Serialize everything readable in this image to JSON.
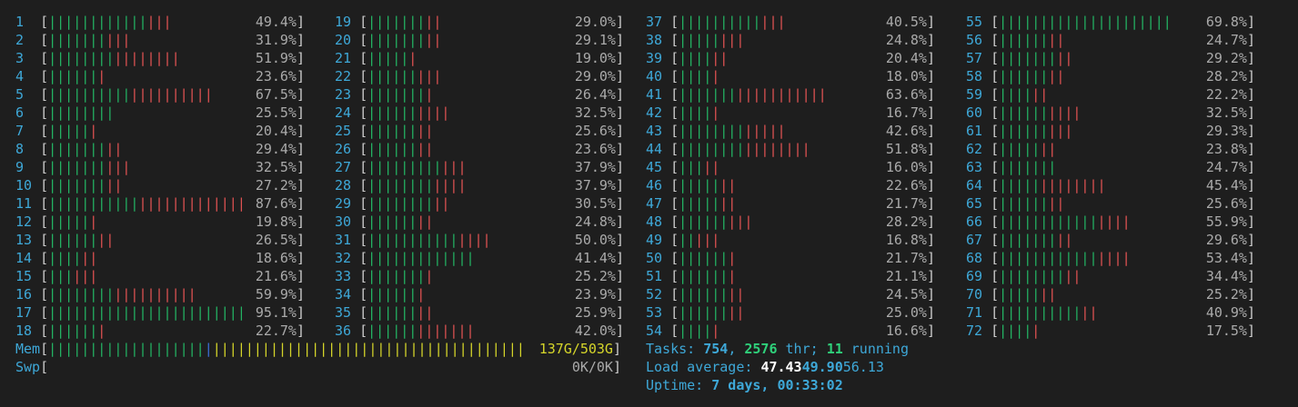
{
  "bracket_open": "[",
  "bracket_close": "]",
  "cpus": [
    {
      "id": "1",
      "green": "||||||||||||",
      "red": "|||",
      "percent": "49.4%"
    },
    {
      "id": "2",
      "green": "|||||||",
      "red": "|||",
      "percent": "31.9%"
    },
    {
      "id": "3",
      "green": "||||||||",
      "red": "||||||||",
      "percent": "51.9%"
    },
    {
      "id": "4",
      "green": "||||||",
      "red": "|",
      "percent": "23.6%"
    },
    {
      "id": "5",
      "green": "||||||||||",
      "red": "||||||||||",
      "percent": "67.5%"
    },
    {
      "id": "6",
      "green": "||||||||",
      "percent": "25.5%"
    },
    {
      "id": "7",
      "green": "|||||",
      "red": "|",
      "percent": "20.4%"
    },
    {
      "id": "8",
      "green": "|||||||",
      "red": "||",
      "percent": "29.4%"
    },
    {
      "id": "9",
      "green": "|||||||",
      "red": "|||",
      "percent": "32.5%"
    },
    {
      "id": "10",
      "green": "|||||||",
      "red": "||",
      "percent": "27.2%"
    },
    {
      "id": "11",
      "green": "|||||||||||",
      "red": "|||||||||||||",
      "percent": "87.6%"
    },
    {
      "id": "12",
      "green": "|||||",
      "red": "|",
      "percent": "19.8%"
    },
    {
      "id": "13",
      "green": "||||||",
      "red": "||",
      "percent": "26.5%"
    },
    {
      "id": "14",
      "green": "||||",
      "red": "||",
      "percent": "18.6%"
    },
    {
      "id": "15",
      "green": "|||",
      "red": "|||",
      "percent": "21.6%"
    },
    {
      "id": "16",
      "green": "||||||||",
      "red": "||||||||||",
      "percent": "59.9%"
    },
    {
      "id": "17",
      "green": "||||||||||||||||||||||||",
      "percent": "95.1%"
    },
    {
      "id": "18",
      "green": "||||||",
      "red": "|",
      "percent": "22.7%"
    },
    {
      "id": "19",
      "green": "|||||||",
      "red": "||",
      "percent": "29.0%"
    },
    {
      "id": "20",
      "green": "|||||||",
      "red": "||",
      "percent": "29.1%"
    },
    {
      "id": "21",
      "green": "|||||",
      "red": "|",
      "percent": "19.0%"
    },
    {
      "id": "22",
      "green": "||||||",
      "red": "|||",
      "percent": "29.0%"
    },
    {
      "id": "23",
      "green": "|||||||",
      "red": "|",
      "percent": "26.4%"
    },
    {
      "id": "24",
      "green": "||||||",
      "red": "||||",
      "percent": "32.5%"
    },
    {
      "id": "25",
      "green": "||||||",
      "red": "||",
      "percent": "25.6%"
    },
    {
      "id": "26",
      "green": "||||||",
      "red": "||",
      "percent": "23.6%"
    },
    {
      "id": "27",
      "green": "|||||||||",
      "red": "|||",
      "percent": "37.9%"
    },
    {
      "id": "28",
      "green": "||||||||",
      "red": "||||",
      "percent": "37.9%"
    },
    {
      "id": "29",
      "green": "||||||||",
      "red": "||",
      "percent": "30.5%"
    },
    {
      "id": "30",
      "green": "||||||",
      "red": "||",
      "percent": "24.8%"
    },
    {
      "id": "31",
      "green": "|||||||||||",
      "red": "||||",
      "percent": "50.0%"
    },
    {
      "id": "32",
      "green": "|||||||||||||",
      "percent": "41.4%"
    },
    {
      "id": "33",
      "green": "|||||||",
      "red": "|",
      "percent": "25.2%"
    },
    {
      "id": "34",
      "green": "||||||",
      "red": "|",
      "percent": "23.9%"
    },
    {
      "id": "35",
      "green": "||||||",
      "red": "||",
      "percent": "25.9%"
    },
    {
      "id": "36",
      "green": "||||||",
      "red": "|||||||",
      "percent": "42.0%"
    },
    {
      "id": "37",
      "green": "||||||||||",
      "red": "|||",
      "percent": "40.5%"
    },
    {
      "id": "38",
      "green": "|||||",
      "red": "|||",
      "percent": "24.8%"
    },
    {
      "id": "39",
      "green": "||||",
      "red": "||",
      "percent": "20.4%"
    },
    {
      "id": "40",
      "green": "||||",
      "red": "|",
      "percent": "18.0%"
    },
    {
      "id": "41",
      "green": "|||||||",
      "red": "|||||||||||",
      "percent": "63.6%"
    },
    {
      "id": "42",
      "green": "||||",
      "red": "|",
      "percent": "16.7%"
    },
    {
      "id": "43",
      "green": "||||||||",
      "red": "|||||",
      "percent": "42.6%"
    },
    {
      "id": "44",
      "green": "||||||||",
      "red": "||||||||",
      "percent": "51.8%"
    },
    {
      "id": "45",
      "green": "|||",
      "red": "||",
      "percent": "16.0%"
    },
    {
      "id": "46",
      "green": "|||||",
      "red": "||",
      "percent": "22.6%"
    },
    {
      "id": "47",
      "green": "|||||",
      "red": "||",
      "percent": "21.7%"
    },
    {
      "id": "48",
      "green": "||||||",
      "red": "|||",
      "percent": "28.2%"
    },
    {
      "id": "49",
      "green": "||",
      "red": "|||",
      "percent": "16.8%"
    },
    {
      "id": "50",
      "green": "||||||",
      "red": "|",
      "percent": "21.7%"
    },
    {
      "id": "51",
      "green": "||||||",
      "red": "|",
      "percent": "21.1%"
    },
    {
      "id": "52",
      "green": "||||||",
      "red": "||",
      "percent": "24.5%"
    },
    {
      "id": "53",
      "green": "||||||",
      "red": "||",
      "percent": "25.0%"
    },
    {
      "id": "54",
      "green": "||||",
      "red": "|",
      "percent": "16.6%"
    },
    {
      "id": "55",
      "green": "|||||||||||||||||||||",
      "percent": "69.8%"
    },
    {
      "id": "56",
      "green": "||||||",
      "red": "||",
      "percent": "24.7%"
    },
    {
      "id": "57",
      "green": "|||||||",
      "red": "||",
      "percent": "29.2%"
    },
    {
      "id": "58",
      "green": "||||||",
      "red": "||",
      "percent": "28.2%"
    },
    {
      "id": "59",
      "green": "||||",
      "red": "||",
      "percent": "22.2%"
    },
    {
      "id": "60",
      "green": "||||||",
      "red": "||||",
      "percent": "32.5%"
    },
    {
      "id": "61",
      "green": "||||||",
      "red": "|||",
      "percent": "29.3%"
    },
    {
      "id": "62",
      "green": "|||||",
      "red": "||",
      "percent": "23.8%"
    },
    {
      "id": "63",
      "green": "|||||||",
      "percent": "24.7%"
    },
    {
      "id": "64",
      "green": "|||||",
      "red": "||||||||",
      "percent": "45.4%"
    },
    {
      "id": "65",
      "green": "||||||",
      "red": "||",
      "percent": "25.6%"
    },
    {
      "id": "66",
      "green": "||||||||||||",
      "red": "||||",
      "percent": "55.9%"
    },
    {
      "id": "67",
      "green": "|||||||",
      "red": "||",
      "percent": "29.6%"
    },
    {
      "id": "68",
      "green": "||||||||||||",
      "red": "||||",
      "percent": "53.4%"
    },
    {
      "id": "69",
      "green": "||||||||",
      "red": "||",
      "percent": "34.4%"
    },
    {
      "id": "70",
      "green": "|||||",
      "red": "||",
      "percent": "25.2%"
    },
    {
      "id": "71",
      "green": "||||||||||",
      "red": "||",
      "percent": "40.9%"
    },
    {
      "id": "72",
      "green": "||||",
      "red": "|",
      "percent": "17.5%"
    }
  ],
  "memory": {
    "label": "Mem",
    "green": "|||||||||||||||||||",
    "blue": "|",
    "yellow": "||||||||||||||||||||||||||||||||||||||",
    "usage": "137G/503G"
  },
  "swap": {
    "label": "Swp",
    "usage": "0K/0K"
  },
  "tasks": {
    "label": "Tasks: ",
    "count": "754",
    "sep": ", ",
    "threads": "2576",
    "thr": " thr; ",
    "running": "11",
    "running_label": " running"
  },
  "load": {
    "label": "Load average: ",
    "one": "47.43",
    "five": "49.90",
    "fifteen": "56.13"
  },
  "uptime": {
    "label": "Uptime: ",
    "value": "7 days, 00:33:02"
  }
}
